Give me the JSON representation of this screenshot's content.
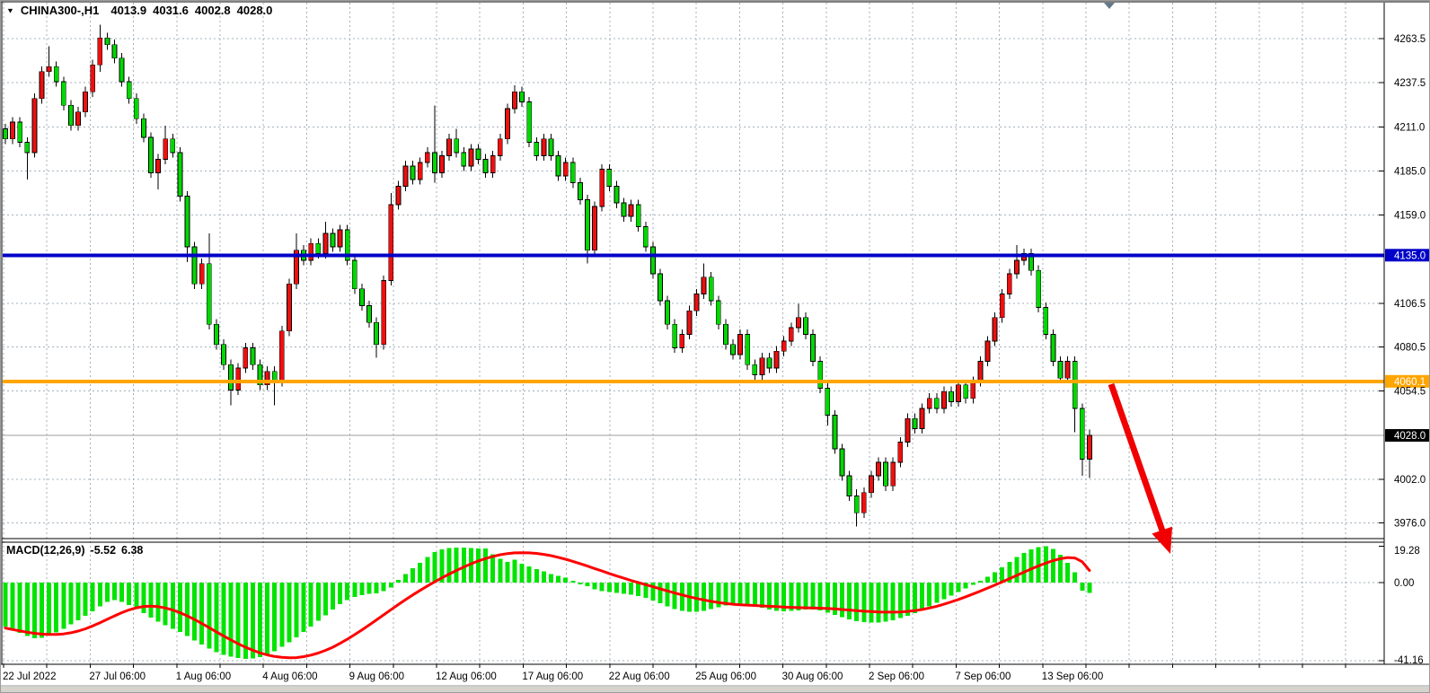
{
  "header": {
    "dropdown_icon": "▼",
    "symbol_timeframe": "CHINA300-,H1",
    "open": "4013.9",
    "high": "4031.6",
    "low": "4002.8",
    "close": "4028.0"
  },
  "indicator": {
    "label": "MACD(12,26,9)",
    "macd_value": "-5.52",
    "signal_value": "6.38"
  },
  "colors": {
    "bull_candle": "#EE0F0F",
    "bear_candle": "#00D800",
    "candle_outline": "#000000",
    "macd_histogram": "#00E400",
    "macd_signal": "#FF0000",
    "resistance_line": "#0000C8",
    "support_line": "#FFA500",
    "current_price_line": "#9c9c9c",
    "grid": "#a3b0bb",
    "arrow": "#F00000",
    "bar_marker": "#66798c",
    "bottom_strip": "#d6d3cc",
    "separator_gray": "#8f9499"
  },
  "chart_data": {
    "type": "candlestick+macd",
    "panels": [
      {
        "type": "candlestick",
        "symbol": "CHINA300-,H1",
        "timeframe": "H1",
        "last_ohlc": {
          "open": 4013.9,
          "high": 4031.6,
          "low": 4002.8,
          "close": 4028.0
        },
        "ylim": [
          3976.0,
          4263.5
        ],
        "y_ticks": [
          4263.5,
          4237.5,
          4211.0,
          4185.0,
          4159.0,
          4135.0,
          4106.5,
          4080.5,
          4054.5,
          4028.0,
          4002.0,
          3976.0
        ],
        "y_ticks_plain": [
          "4263.5",
          "4237.5",
          "4211.0",
          "4185.0",
          "4159.0",
          "4106.5",
          "4080.5",
          "4054.5",
          "4002.0",
          "3976.0"
        ],
        "x_tick_labels": [
          "22 Jul 2022",
          "27 Jul 06:00",
          "1 Aug 06:00",
          "4 Aug 06:00",
          "9 Aug 06:00",
          "12 Aug 06:00",
          "17 Aug 06:00",
          "22 Aug 06:00",
          "25 Aug 06:00",
          "30 Aug 06:00",
          "2 Sep 06:00",
          "7 Sep 06:00",
          "13 Sep 06:00"
        ],
        "first_open": 4210,
        "closes": [
          4204,
          4214,
          4202,
          4196,
          4228,
          4244,
          4247,
          4238,
          4224,
          4212,
          4220,
          4232,
          4248,
          4264,
          4260,
          4252,
          4238,
          4228,
          4216,
          4205,
          4184,
          4192,
          4204,
          4196,
          4170,
          4140,
          4118,
          4130,
          4094,
          4082,
          4070,
          4055,
          4068,
          4080,
          4070,
          4058,
          4066,
          4060,
          4090,
          4118,
          4138,
          4132,
          4142,
          4136,
          4148,
          4140,
          4150,
          4132,
          4115,
          4105,
          4095,
          4082,
          4120,
          4165,
          4176,
          4188,
          4180,
          4190,
          4196,
          4184,
          4194,
          4204,
          4196,
          4188,
          4198,
          4192,
          4184,
          4194,
          4204,
          4222,
          4232,
          4226,
          4202,
          4194,
          4204,
          4194,
          4182,
          4190,
          4178,
          4168,
          4138,
          4164,
          4186,
          4176,
          4166,
          4158,
          4165,
          4152,
          4140,
          4124,
          4108,
          4094,
          4080,
          4088,
          4102,
          4112,
          4122,
          4108,
          4094,
          4082,
          4076,
          4088,
          4070,
          4064,
          4074,
          4068,
          4078,
          4084,
          4092,
          4098,
          4088,
          4072,
          4056,
          4040,
          4020,
          4004,
          3992,
          3982,
          3994,
          4004,
          4012,
          3998,
          4012,
          4024,
          4038,
          4032,
          4044,
          4050,
          4044,
          4054,
          4048,
          4058,
          4050,
          4060,
          4072,
          4084,
          4098,
          4112,
          4124,
          4132,
          4136,
          4126,
          4104,
          4088,
          4072,
          4062,
          4072,
          4044,
          4013.9,
          4028.0
        ],
        "wick_default": 3,
        "wick_overrides": {
          "3": [
            3,
            16
          ],
          "6": [
            12,
            3
          ],
          "13": [
            8,
            4
          ],
          "21": [
            3,
            10
          ],
          "22": [
            8,
            3
          ],
          "25": [
            3,
            9
          ],
          "28": [
            18,
            3
          ],
          "31": [
            3,
            9
          ],
          "37": [
            3,
            14
          ],
          "40": [
            10,
            3
          ],
          "44": [
            7,
            3
          ],
          "51": [
            3,
            8
          ],
          "53": [
            7,
            3
          ],
          "59": [
            28,
            6
          ],
          "62": [
            6,
            3
          ],
          "70": [
            4,
            3
          ],
          "80": [
            3,
            8
          ],
          "96": [
            8,
            3
          ],
          "109": [
            8,
            3
          ],
          "113": [
            3,
            6
          ],
          "117": [
            4,
            8
          ],
          "139": [
            9,
            3
          ],
          "147": [
            3,
            14
          ],
          "148": [
            3,
            10
          ],
          "149": [
            3.6,
            11.1
          ]
        },
        "hlines": [
          {
            "name": "resistance-line",
            "price": 4135.0,
            "label": "4135.0",
            "color": "#0000C8"
          },
          {
            "name": "support-line",
            "price": 4060.1,
            "label": "4060.1",
            "color": "#FFA500"
          }
        ],
        "current_price": {
          "value": 4028.0,
          "label": "4028.0"
        }
      },
      {
        "type": "macd_histogram",
        "label": "MACD(12,26,9)",
        "macd_value": -5.52,
        "signal_value": 6.38,
        "ylim": [
          -41.16,
          19.28
        ],
        "y_ticks": [
          19.28,
          0.0,
          -41.16
        ],
        "y_tick_labels": [
          "19.28",
          "0.00",
          "-41.16"
        ],
        "histogram": [
          -23.2,
          -24.8,
          -26.5,
          -28.3,
          -29.4,
          -29.1,
          -27.8,
          -26.3,
          -24.4,
          -22.1,
          -19.8,
          -17.5,
          -15.2,
          -12.6,
          -10.2,
          -9.2,
          -10.1,
          -11.8,
          -13.9,
          -16.2,
          -18.4,
          -20.6,
          -22.5,
          -24.3,
          -26.0,
          -28.2,
          -30.5,
          -32.6,
          -34.8,
          -36.8,
          -38.2,
          -39.2,
          -39.9,
          -40.2,
          -40.0,
          -39.3,
          -38.0,
          -36.2,
          -34.0,
          -31.5,
          -28.8,
          -26.0,
          -23.2,
          -20.2,
          -17.2,
          -14.2,
          -11.4,
          -9.2,
          -7.6,
          -6.6,
          -6.0,
          -5.8,
          -4.6,
          -2.6,
          1.5,
          4.5,
          7.5,
          10.5,
          13.5,
          16.0,
          17.5,
          18.2,
          18.5,
          18.5,
          18.3,
          18.0,
          18.0,
          15.0,
          12.5,
          11.0,
          12.0,
          10.0,
          8.5,
          7.0,
          6.0,
          4.5,
          3.5,
          2.5,
          1.0,
          -1.0,
          -2.0,
          -3.5,
          -4.5,
          -5.0,
          -5.5,
          -6.0,
          -6.5,
          -7.0,
          -8.0,
          -9.5,
          -11.0,
          -12.5,
          -14.0,
          -15.0,
          -15.5,
          -15.5,
          -15.0,
          -14.0,
          -13.0,
          -12.2,
          -11.5,
          -11.2,
          -11.6,
          -12.4,
          -13.2,
          -14.2,
          -14.9,
          -15.2,
          -15.0,
          -14.6,
          -14.2,
          -14.2,
          -14.8,
          -15.8,
          -17.0,
          -18.3,
          -19.4,
          -20.3,
          -20.9,
          -21.2,
          -21.1,
          -20.6,
          -19.8,
          -18.8,
          -17.5,
          -16.0,
          -14.3,
          -12.5,
          -10.6,
          -8.7,
          -6.8,
          -4.9,
          -3.0,
          -1.1,
          0.9,
          3.0,
          5.4,
          8.0,
          10.8,
          13.4,
          15.7,
          17.5,
          18.8,
          19.3,
          17.8,
          14.8,
          10.5,
          5.5,
          -4.2,
          -5.52
        ],
        "signal_line": [
          -24.0,
          -24.8,
          -25.5,
          -26.2,
          -26.8,
          -27.2,
          -27.4,
          -27.4,
          -27.1,
          -26.5,
          -25.6,
          -24.4,
          -22.9,
          -21.2,
          -19.4,
          -17.6,
          -15.9,
          -14.4,
          -13.3,
          -12.6,
          -12.4,
          -12.7,
          -13.4,
          -14.5,
          -15.9,
          -17.6,
          -19.5,
          -21.6,
          -23.8,
          -26.0,
          -28.2,
          -30.3,
          -32.3,
          -34.1,
          -35.7,
          -37.1,
          -38.2,
          -39.0,
          -39.5,
          -39.7,
          -39.6,
          -39.1,
          -38.3,
          -37.2,
          -35.8,
          -34.1,
          -32.1,
          -29.9,
          -27.5,
          -25.0,
          -22.4,
          -19.7,
          -17.0,
          -14.3,
          -11.6,
          -9.0,
          -6.5,
          -4.1,
          -1.8,
          0.4,
          2.5,
          4.5,
          6.4,
          8.2,
          9.9,
          11.4,
          12.7,
          13.8,
          14.7,
          15.3,
          15.7,
          15.8,
          15.7,
          15.4,
          14.9,
          14.2,
          13.3,
          12.3,
          11.2,
          10.0,
          8.7,
          7.4,
          6.1,
          4.8,
          3.5,
          2.3,
          1.1,
          0.0,
          -1.1,
          -2.2,
          -3.3,
          -4.4,
          -5.5,
          -6.5,
          -7.5,
          -8.4,
          -9.2,
          -9.9,
          -10.5,
          -11.0,
          -11.4,
          -11.7,
          -11.9,
          -12.1,
          -12.3,
          -12.5,
          -12.7,
          -12.9,
          -13.1,
          -13.2,
          -13.3,
          -13.4,
          -13.5,
          -13.7,
          -13.9,
          -14.2,
          -14.5,
          -14.8,
          -15.1,
          -15.3,
          -15.5,
          -15.6,
          -15.6,
          -15.5,
          -15.2,
          -14.8,
          -14.2,
          -13.4,
          -12.5,
          -11.4,
          -10.2,
          -8.9,
          -7.5,
          -6.0,
          -4.5,
          -2.9,
          -1.3,
          0.4,
          2.1,
          3.8,
          5.5,
          7.2,
          8.8,
          10.3,
          11.6,
          12.6,
          13.2,
          13.0,
          11.0,
          6.38
        ]
      }
    ],
    "annotations": [
      {
        "type": "arrow",
        "name": "downtrend-arrow",
        "from": [
          1237,
          428
        ],
        "to": [
          1303,
          617
        ],
        "color": "#F00000"
      },
      {
        "type": "bar-position-marker",
        "x": 1235,
        "y": 3,
        "color": "#66798c"
      }
    ]
  }
}
